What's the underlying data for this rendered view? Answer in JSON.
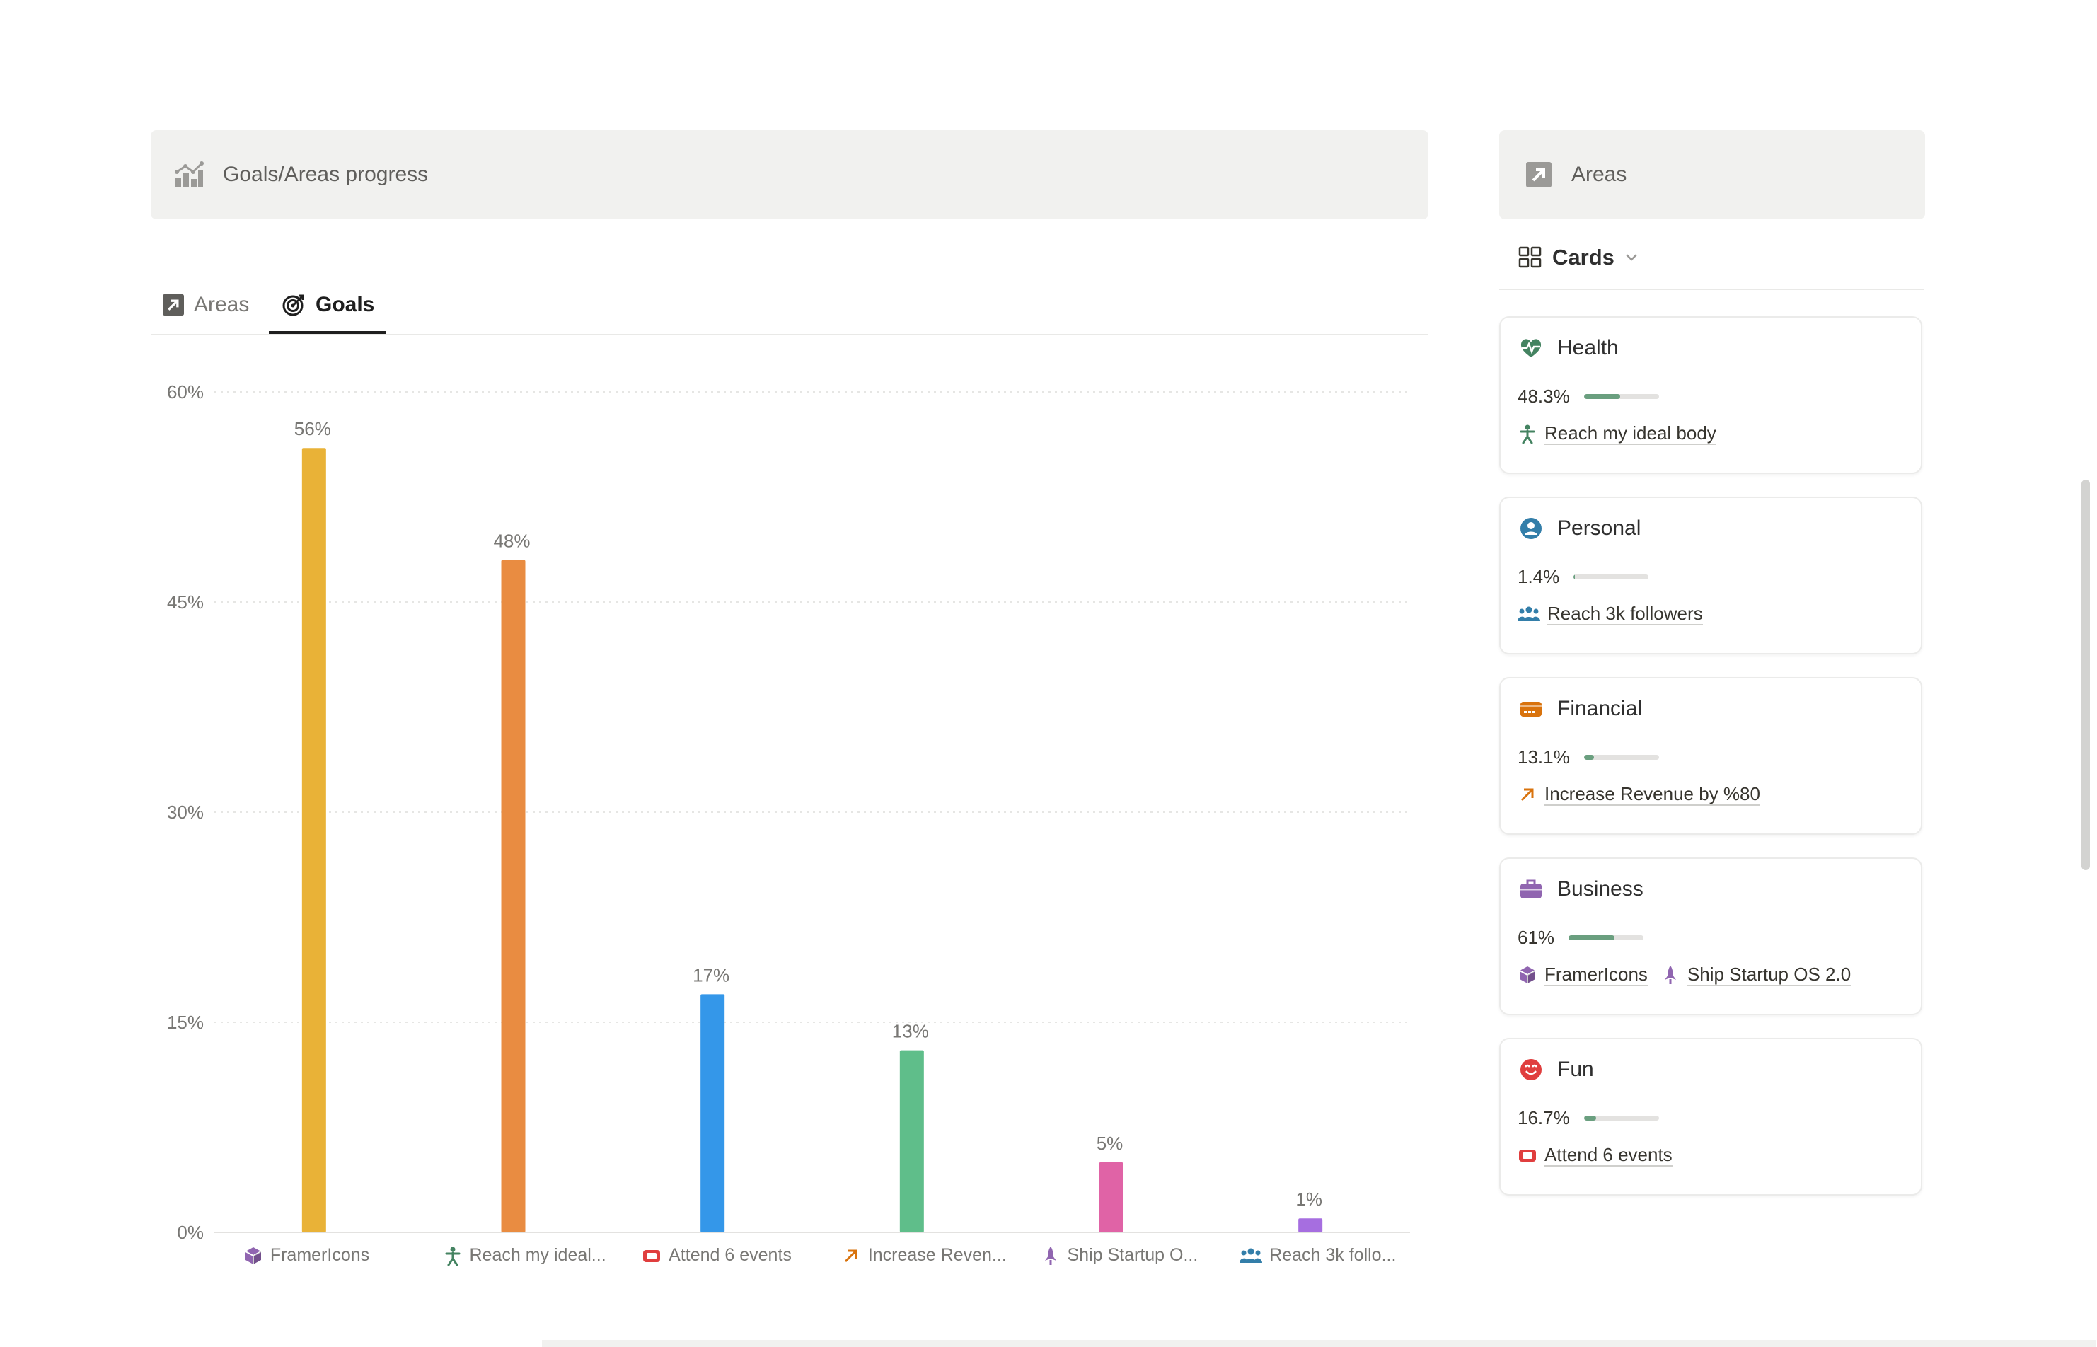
{
  "left_callout": {
    "title": "Goals/Areas progress",
    "icon": "chart-icon"
  },
  "right_callout": {
    "title": "Areas",
    "icon": "arrow-up-right-square-icon"
  },
  "tabs": [
    {
      "label": "Areas",
      "icon": "arrow-up-right-square-icon",
      "active": false
    },
    {
      "label": "Goals",
      "icon": "target-icon",
      "active": true
    }
  ],
  "view": {
    "label": "Cards",
    "icon": "grid-icon"
  },
  "chart_data": {
    "type": "bar",
    "categories": [
      "FramerIcons",
      "Reach my ideal...",
      "Attend 6 events",
      "Increase Reven...",
      "Ship Startup O...",
      "Reach 3k follo..."
    ],
    "category_icons": [
      "cube-icon",
      "person-icon",
      "ticket-icon",
      "arrow-up-right-icon",
      "rocket-icon",
      "people-icon"
    ],
    "category_icon_colors": [
      "#9065b0",
      "#448361",
      "#e03e3e",
      "#d9730d",
      "#9065b0",
      "#337ea9"
    ],
    "values": [
      56,
      48,
      17,
      13,
      5,
      1
    ],
    "data_labels": [
      "56%",
      "48%",
      "17%",
      "13%",
      "5%",
      "1%"
    ],
    "colors": [
      "#e9b237",
      "#e98c41",
      "#3497e9",
      "#5fbe8a",
      "#e063a6",
      "#a66ee0"
    ],
    "y_ticks": [
      "0%",
      "15%",
      "30%",
      "45%",
      "60%"
    ],
    "y_tick_values": [
      0,
      15,
      30,
      45,
      60
    ],
    "ylim": [
      0,
      60
    ],
    "grid": true
  },
  "cards": [
    {
      "title": "Health",
      "icon": "heart-pulse-icon",
      "icon_color": "#448361",
      "pct": "48.3%",
      "progress": 0.483,
      "relations": [
        {
          "label": "Reach my ideal body",
          "icon": "person-icon",
          "color": "#448361"
        }
      ]
    },
    {
      "title": "Personal",
      "icon": "user-circle-icon",
      "icon_color": "#337ea9",
      "pct": "1.4%",
      "progress": 0.014,
      "relations": [
        {
          "label": "Reach 3k followers",
          "icon": "people-icon",
          "color": "#337ea9"
        }
      ]
    },
    {
      "title": "Financial",
      "icon": "card-icon",
      "icon_color": "#d9730d",
      "pct": "13.1%",
      "progress": 0.131,
      "relations": [
        {
          "label": "Increase Revenue by %80",
          "icon": "arrow-up-right-icon",
          "color": "#d9730d"
        }
      ]
    },
    {
      "title": "Business",
      "icon": "briefcase-icon",
      "icon_color": "#9065b0",
      "pct": "61%",
      "progress": 0.61,
      "relations": [
        {
          "label": "FramerIcons",
          "icon": "cube-icon",
          "color": "#9065b0"
        },
        {
          "label": "Ship Startup OS 2.0",
          "icon": "rocket-icon",
          "color": "#9065b0"
        }
      ]
    },
    {
      "title": "Fun",
      "icon": "smile-icon",
      "icon_color": "#e03e3e",
      "pct": "16.7%",
      "progress": 0.167,
      "relations": [
        {
          "label": "Attend 6 events",
          "icon": "ticket-icon",
          "color": "#e03e3e"
        }
      ]
    }
  ]
}
